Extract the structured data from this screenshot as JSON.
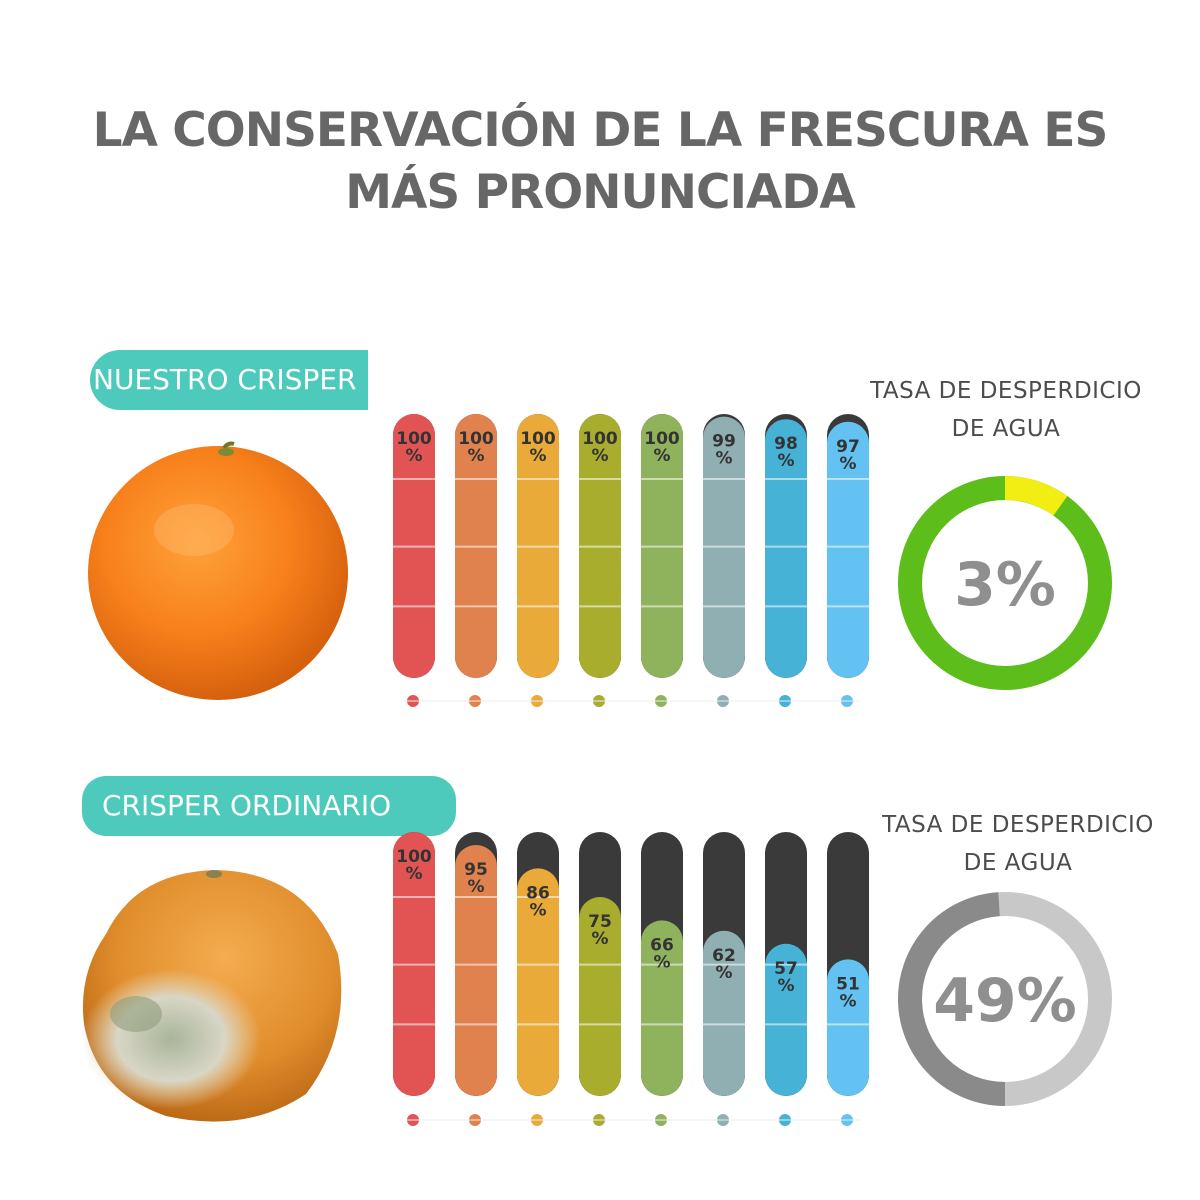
{
  "headline": "LA CONSERVACIÓN DE LA FRESCURA ES MÁS PRONUNCIADA",
  "sections": [
    {
      "label": "NUESTRO CRISPER",
      "waste_label_line1": "TASA DE DESPERDICIO",
      "waste_label_line2": "DE AGUA",
      "waste_rate": "3%",
      "waste_value": 3,
      "donut_colors": {
        "ring": "#5dbe1b",
        "waste": "#f2ee13"
      },
      "fruit": "fresh-orange"
    },
    {
      "label": "CRISPER ORDINARIO",
      "waste_label_line1": "TASA DE DESPERDICIO",
      "waste_label_line2": "DE AGUA",
      "waste_rate": "49%",
      "waste_value": 49,
      "donut_colors": {
        "ring": "#c8c8c8",
        "waste": "#8a8a8a"
      },
      "fruit": "moldy-orange"
    }
  ],
  "chart_data": [
    {
      "type": "bar",
      "name": "NUESTRO CRISPER",
      "values": [
        100,
        100,
        100,
        100,
        100,
        99,
        98,
        97
      ],
      "value_labels": [
        "100 %",
        "100 %",
        "100 %",
        "100 %",
        "100 %",
        "99 %",
        "98 %",
        "97 %"
      ],
      "ylim": [
        0,
        100
      ],
      "colors": [
        "#e25454",
        "#e0824e",
        "#eaaa3a",
        "#a8ad2e",
        "#8fb25c",
        "#8fafb3",
        "#46b2d6",
        "#63c2f2"
      ],
      "empty_color": "#3a3a3a"
    },
    {
      "type": "bar",
      "name": "CRISPER ORDINARIO",
      "values": [
        100,
        95,
        86,
        75,
        66,
        62,
        57,
        51
      ],
      "value_labels": [
        "100 %",
        "95 %",
        "86 %",
        "75 %",
        "66 %",
        "62 %",
        "57 %",
        "51 %"
      ],
      "ylim": [
        0,
        100
      ],
      "colors": [
        "#e25454",
        "#e0824e",
        "#eaaa3a",
        "#a8ad2e",
        "#8fb25c",
        "#8fafb3",
        "#46b2d6",
        "#63c2f2"
      ],
      "empty_color": "#3a3a3a"
    }
  ]
}
